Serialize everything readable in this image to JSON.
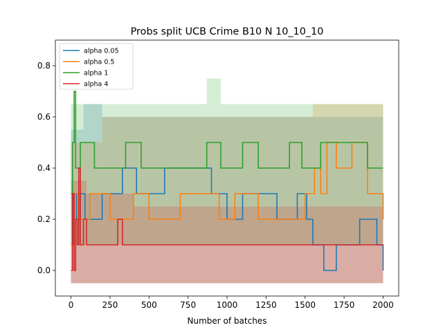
{
  "chart_data": {
    "type": "line",
    "title": "Probs split UCB Crime B10 N 10_10_10",
    "xlabel": "Number of batches",
    "ylabel": "",
    "xlim": [
      -100,
      2100
    ],
    "ylim": [
      -0.1,
      0.9
    ],
    "x_ticks": [
      0,
      250,
      500,
      750,
      1000,
      1250,
      1500,
      1750,
      2000
    ],
    "y_ticks": [
      0.0,
      0.2,
      0.4,
      0.6,
      0.8
    ],
    "x_tick_labels": [
      "0",
      "250",
      "500",
      "750",
      "1000",
      "1250",
      "1500",
      "1750",
      "2000"
    ],
    "y_tick_labels": [
      "0.0",
      "0.2",
      "0.4",
      "0.6",
      "0.8"
    ],
    "grid": false,
    "legend_position": "top-left",
    "series": [
      {
        "name": "alpha 0.05",
        "color": "#1f77b4",
        "mean": [
          [
            0,
            0.1
          ],
          [
            15,
            0.3
          ],
          [
            35,
            0.2
          ],
          [
            60,
            0.3
          ],
          [
            90,
            0.2
          ],
          [
            200,
            0.3
          ],
          [
            330,
            0.4
          ],
          [
            420,
            0.3
          ],
          [
            600,
            0.4
          ],
          [
            900,
            0.3
          ],
          [
            1000,
            0.2
          ],
          [
            1100,
            0.3
          ],
          [
            1320,
            0.2
          ],
          [
            1450,
            0.3
          ],
          [
            1510,
            0.2
          ],
          [
            1550,
            0.1
          ],
          [
            1620,
            0.0
          ],
          [
            1700,
            0.1
          ],
          [
            1850,
            0.2
          ],
          [
            1960,
            0.1
          ],
          [
            2000,
            0.0
          ]
        ],
        "band_lower": [
          [
            0,
            -0.05
          ],
          [
            2000,
            -0.05
          ]
        ],
        "band_upper": [
          [
            0,
            0.55
          ],
          [
            80,
            0.65
          ],
          [
            200,
            0.6
          ],
          [
            1500,
            0.6
          ],
          [
            2000,
            0.65
          ]
        ]
      },
      {
        "name": "alpha 0.5",
        "color": "#ff7f0e",
        "mean": [
          [
            0,
            0.1
          ],
          [
            20,
            0.3
          ],
          [
            45,
            0.2
          ],
          [
            120,
            0.3
          ],
          [
            250,
            0.2
          ],
          [
            400,
            0.3
          ],
          [
            500,
            0.2
          ],
          [
            700,
            0.3
          ],
          [
            950,
            0.2
          ],
          [
            1050,
            0.3
          ],
          [
            1200,
            0.2
          ],
          [
            1350,
            0.2
          ],
          [
            1500,
            0.3
          ],
          [
            1560,
            0.4
          ],
          [
            1600,
            0.3
          ],
          [
            1640,
            0.5
          ],
          [
            1700,
            0.4
          ],
          [
            1800,
            0.5
          ],
          [
            1900,
            0.3
          ],
          [
            2000,
            0.2
          ]
        ],
        "band_lower": [
          [
            0,
            -0.05
          ],
          [
            2000,
            -0.05
          ]
        ],
        "band_upper": [
          [
            0,
            0.5
          ],
          [
            200,
            0.6
          ],
          [
            1500,
            0.6
          ],
          [
            1550,
            0.65
          ],
          [
            2000,
            0.65
          ]
        ]
      },
      {
        "name": "alpha 1",
        "color": "#2ca02c",
        "mean": [
          [
            0,
            0.3
          ],
          [
            10,
            0.5
          ],
          [
            20,
            0.7
          ],
          [
            30,
            0.4
          ],
          [
            60,
            0.5
          ],
          [
            150,
            0.4
          ],
          [
            350,
            0.5
          ],
          [
            450,
            0.4
          ],
          [
            700,
            0.4
          ],
          [
            870,
            0.5
          ],
          [
            960,
            0.4
          ],
          [
            1100,
            0.5
          ],
          [
            1200,
            0.4
          ],
          [
            1400,
            0.5
          ],
          [
            1480,
            0.4
          ],
          [
            1600,
            0.5
          ],
          [
            1900,
            0.4
          ],
          [
            2000,
            0.4
          ]
        ],
        "band_lower": [
          [
            0,
            0.1
          ],
          [
            2000,
            0.25
          ]
        ],
        "band_upper": [
          [
            0,
            0.65
          ],
          [
            860,
            0.65
          ],
          [
            870,
            0.75
          ],
          [
            950,
            0.75
          ],
          [
            960,
            0.65
          ],
          [
            2000,
            0.65
          ]
        ]
      },
      {
        "name": "alpha 4",
        "color": "#d62728",
        "mean": [
          [
            0,
            0.0
          ],
          [
            10,
            0.3
          ],
          [
            20,
            0.0
          ],
          [
            30,
            0.2
          ],
          [
            40,
            0.1
          ],
          [
            50,
            0.4
          ],
          [
            60,
            0.1
          ],
          [
            80,
            0.2
          ],
          [
            100,
            0.1
          ],
          [
            300,
            0.2
          ],
          [
            330,
            0.1
          ],
          [
            600,
            0.1
          ],
          [
            1000,
            0.1
          ],
          [
            2000,
            0.1
          ]
        ],
        "band_lower": [
          [
            0,
            -0.05
          ],
          [
            2000,
            -0.05
          ]
        ],
        "band_upper": [
          [
            0,
            0.35
          ],
          [
            100,
            0.3
          ],
          [
            400,
            0.25
          ],
          [
            2000,
            0.25
          ]
        ]
      }
    ]
  }
}
